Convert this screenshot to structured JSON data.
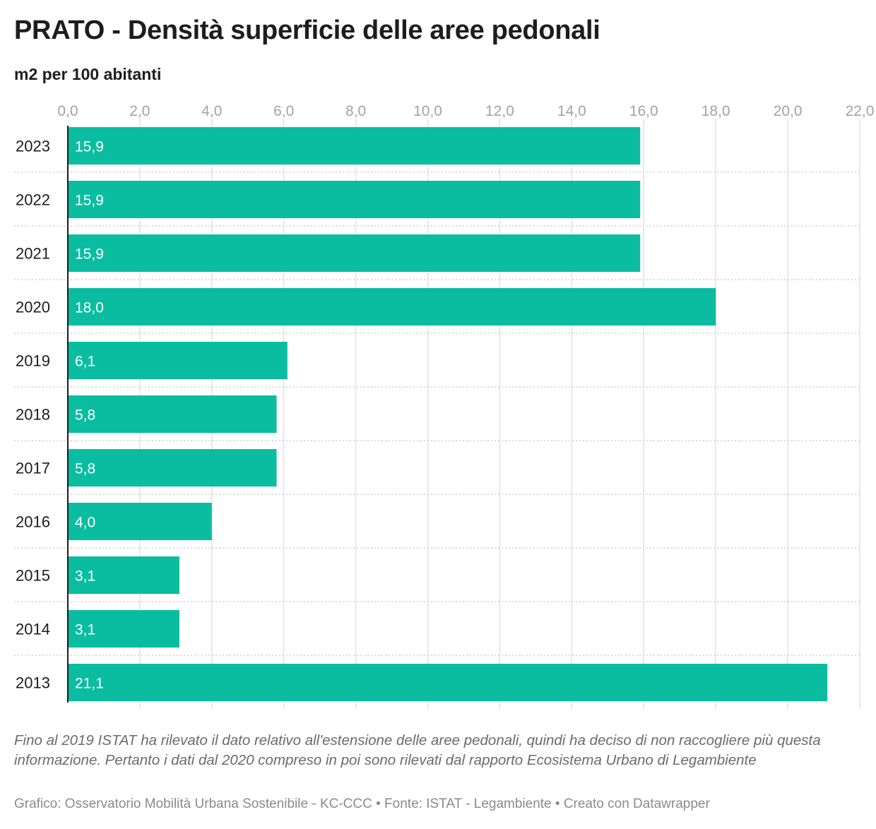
{
  "chart_data": {
    "type": "bar",
    "orientation": "horizontal",
    "title": "PRATO - Densità superficie delle aree pedonali",
    "subtitle": "m2 per 100 abitanti",
    "categories": [
      "2023",
      "2022",
      "2021",
      "2020",
      "2019",
      "2018",
      "2017",
      "2016",
      "2015",
      "2014",
      "2013"
    ],
    "values": [
      15.9,
      15.9,
      15.9,
      18.0,
      6.1,
      5.8,
      5.8,
      4.0,
      3.1,
      3.1,
      21.1
    ],
    "value_labels": [
      "15,9",
      "15,9",
      "15,9",
      "18,0",
      "6,1",
      "5,8",
      "5,8",
      "4,0",
      "3,1",
      "3,1",
      "21,1"
    ],
    "x_ticks": [
      0,
      2,
      4,
      6,
      8,
      10,
      12,
      14,
      16,
      18,
      20,
      22
    ],
    "x_tick_labels": [
      "0,0",
      "2,0",
      "4,0",
      "6,0",
      "8,0",
      "10,0",
      "12,0",
      "14,0",
      "16,0",
      "18,0",
      "20,0",
      "22,0"
    ],
    "xlim": [
      0,
      22
    ],
    "grid": true,
    "legend": "none",
    "bar_color": "#0bbda0"
  },
  "notes": "Fino al 2019 ISTAT ha rilevato il dato relativo all'estensione delle aree pedonali, quindi ha deciso di non raccogliere più questa informazione. Pertanto i dati dal 2020 compreso in poi sono rilevati dal rapporto Ecosistema Urbano di Legambiente",
  "footer": "Grafico: Osservatorio Mobilità Urbana Sostenibile - KC-CCC • Fonte: ISTAT - Legambiente • Creato con Datawrapper"
}
